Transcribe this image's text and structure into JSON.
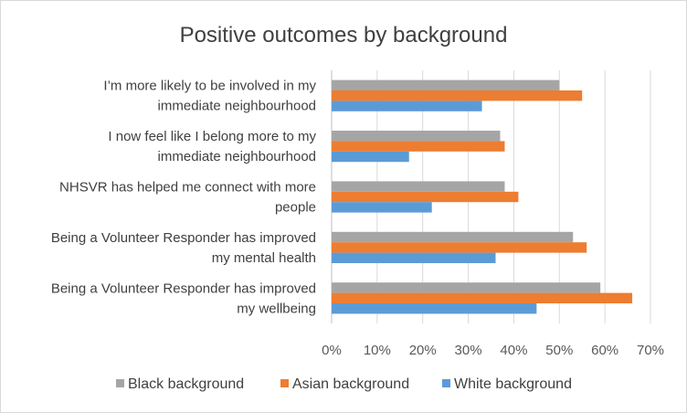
{
  "chart_data": {
    "type": "bar",
    "orientation": "horizontal",
    "title": "Positive outcomes by background",
    "categories": [
      [
        "I’m more likely to be involved in my",
        "immediate neighbourhood"
      ],
      [
        "I now feel like I belong more to my",
        "immediate neighbourhood"
      ],
      [
        "NHSVR has helped me connect with more",
        "people"
      ],
      [
        "Being a Volunteer Responder has improved",
        "my mental health"
      ],
      [
        "Being a Volunteer Responder has improved",
        "my wellbeing"
      ]
    ],
    "series": [
      {
        "name": "Black background",
        "color": "#a5a5a5",
        "values": [
          50,
          37,
          38,
          53,
          59
        ]
      },
      {
        "name": "Asian background",
        "color": "#ed7d31",
        "values": [
          55,
          38,
          41,
          56,
          66
        ]
      },
      {
        "name": "White background",
        "color": "#5b9bd5",
        "values": [
          33,
          17,
          22,
          36,
          45
        ]
      }
    ],
    "x_ticks": [
      "0%",
      "10%",
      "20%",
      "30%",
      "40%",
      "50%",
      "60%",
      "70%"
    ],
    "xlim": [
      0,
      70
    ],
    "grid": true,
    "legend_position": "bottom",
    "gridline_color": "#d9d9d9",
    "axis_color": "#bfbfbf"
  }
}
